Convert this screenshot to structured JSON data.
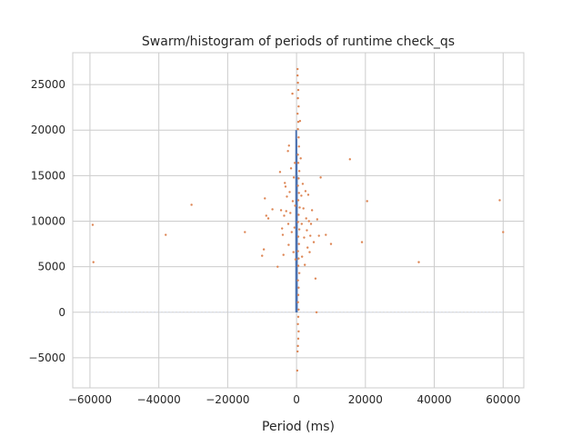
{
  "chart_data": {
    "type": "scatter",
    "title": "Swarm/histogram of periods of runtime check_qs",
    "xlabel": "Period (ms)",
    "ylabel": "",
    "xlim": [
      -65000,
      66000
    ],
    "ylim": [
      -8300,
      28500
    ],
    "grid": true,
    "x_ticks": [
      -60000,
      -40000,
      -20000,
      0,
      20000,
      40000,
      60000
    ],
    "x_tick_labels": [
      "−60000",
      "−40000",
      "−20000",
      "0",
      "20000",
      "40000",
      "60000"
    ],
    "y_ticks": [
      -5000,
      0,
      5000,
      10000,
      15000,
      20000,
      25000
    ],
    "y_tick_labels": [
      "−5000",
      "0",
      "5000",
      "10000",
      "15000",
      "20000",
      "25000"
    ],
    "colors": {
      "histogram": "#4c72b0",
      "swarm": "#dd8452",
      "baseline": "#d9e0ec"
    },
    "series": [
      {
        "kind": "histogram",
        "color": "#4c72b0",
        "bars": [
          {
            "x": -100,
            "y_from": 0,
            "y_to": 20000
          },
          {
            "x": -40,
            "y_from": 0,
            "y_to": 19000
          },
          {
            "x": 20,
            "y_from": 0,
            "y_to": 17500
          },
          {
            "x": 80,
            "y_from": 0,
            "y_to": 15000
          }
        ]
      },
      {
        "kind": "scatter",
        "color": "#dd8452",
        "points": [
          {
            "x": -59200,
            "y": 9600
          },
          {
            "x": -59000,
            "y": 5500
          },
          {
            "x": -38000,
            "y": 8500
          },
          {
            "x": -30500,
            "y": 11800
          },
          {
            "x": -15000,
            "y": 8800
          },
          {
            "x": -10000,
            "y": 6200
          },
          {
            "x": -9500,
            "y": 6900
          },
          {
            "x": -9200,
            "y": 12500
          },
          {
            "x": -8800,
            "y": 10600
          },
          {
            "x": -8200,
            "y": 10300
          },
          {
            "x": -7000,
            "y": 11300
          },
          {
            "x": -5500,
            "y": 5000
          },
          {
            "x": -4800,
            "y": 15400
          },
          {
            "x": -4500,
            "y": 11200
          },
          {
            "x": -4200,
            "y": 9200
          },
          {
            "x": -4000,
            "y": 8500
          },
          {
            "x": -3800,
            "y": 6300
          },
          {
            "x": -3600,
            "y": 10600
          },
          {
            "x": -3400,
            "y": 14200
          },
          {
            "x": -3200,
            "y": 13800
          },
          {
            "x": -3000,
            "y": 11100
          },
          {
            "x": -2800,
            "y": 12700
          },
          {
            "x": -2500,
            "y": 17700
          },
          {
            "x": -2400,
            "y": 9700
          },
          {
            "x": -2300,
            "y": 7400
          },
          {
            "x": -2200,
            "y": 18300
          },
          {
            "x": -2000,
            "y": 13200
          },
          {
            "x": -1800,
            "y": 10900
          },
          {
            "x": -1600,
            "y": 15800
          },
          {
            "x": -1400,
            "y": 8800
          },
          {
            "x": -1200,
            "y": 24000
          },
          {
            "x": -1100,
            "y": 12200
          },
          {
            "x": -900,
            "y": 6600
          },
          {
            "x": -800,
            "y": 14800
          },
          {
            "x": -600,
            "y": 9300
          },
          {
            "x": -500,
            "y": 16400
          },
          {
            "x": -400,
            "y": 11700
          },
          {
            "x": -300,
            "y": 5800
          },
          {
            "x": 300,
            "y": 26700
          },
          {
            "x": 300,
            "y": 26000
          },
          {
            "x": 400,
            "y": 25200
          },
          {
            "x": 500,
            "y": 24400
          },
          {
            "x": 400,
            "y": 23500
          },
          {
            "x": 600,
            "y": 22600
          },
          {
            "x": 300,
            "y": 21800
          },
          {
            "x": 500,
            "y": 20900
          },
          {
            "x": 400,
            "y": 20100
          },
          {
            "x": 600,
            "y": 19200
          },
          {
            "x": 700,
            "y": 18200
          },
          {
            "x": 400,
            "y": 17300
          },
          {
            "x": 500,
            "y": 16400
          },
          {
            "x": 800,
            "y": 15500
          },
          {
            "x": 600,
            "y": 14700
          },
          {
            "x": 400,
            "y": 13900
          },
          {
            "x": 700,
            "y": 13100
          },
          {
            "x": 500,
            "y": 12300
          },
          {
            "x": 900,
            "y": 11500
          },
          {
            "x": 600,
            "y": 10700
          },
          {
            "x": 400,
            "y": 9900
          },
          {
            "x": 800,
            "y": 9100
          },
          {
            "x": 500,
            "y": 8300
          },
          {
            "x": 700,
            "y": 7500
          },
          {
            "x": 400,
            "y": 6700
          },
          {
            "x": 600,
            "y": 5900
          },
          {
            "x": 500,
            "y": 5100
          },
          {
            "x": 800,
            "y": 4300
          },
          {
            "x": 400,
            "y": 3500
          },
          {
            "x": 600,
            "y": 2700
          },
          {
            "x": 500,
            "y": 1900
          },
          {
            "x": 400,
            "y": 1100
          },
          {
            "x": 600,
            "y": 300
          },
          {
            "x": 500,
            "y": -500
          },
          {
            "x": 400,
            "y": -1300
          },
          {
            "x": 600,
            "y": -2100
          },
          {
            "x": 500,
            "y": -2900
          },
          {
            "x": 400,
            "y": -3700
          },
          {
            "x": 300,
            "y": -4300
          },
          {
            "x": 200,
            "y": -6400
          },
          {
            "x": 1000,
            "y": 21000
          },
          {
            "x": 1200,
            "y": 16900
          },
          {
            "x": 1400,
            "y": 12800
          },
          {
            "x": 1500,
            "y": 9700
          },
          {
            "x": 1600,
            "y": 6100
          },
          {
            "x": 1800,
            "y": 14100
          },
          {
            "x": 2000,
            "y": 11400
          },
          {
            "x": 2200,
            "y": 8200
          },
          {
            "x": 2400,
            "y": 5200
          },
          {
            "x": 2600,
            "y": 13300
          },
          {
            "x": 2800,
            "y": 10300
          },
          {
            "x": 3000,
            "y": 9000
          },
          {
            "x": 3200,
            "y": 7100
          },
          {
            "x": 3400,
            "y": 12900
          },
          {
            "x": 3600,
            "y": 10000
          },
          {
            "x": 3800,
            "y": 6600
          },
          {
            "x": 4000,
            "y": 8400
          },
          {
            "x": 4200,
            "y": 9700
          },
          {
            "x": 4500,
            "y": 11200
          },
          {
            "x": 5000,
            "y": 7700
          },
          {
            "x": 5500,
            "y": 3700
          },
          {
            "x": 5800,
            "y": 0
          },
          {
            "x": 6000,
            "y": 10200
          },
          {
            "x": 6500,
            "y": 8400
          },
          {
            "x": 7000,
            "y": 14800
          },
          {
            "x": 8500,
            "y": 8500
          },
          {
            "x": 10000,
            "y": 7500
          },
          {
            "x": 15500,
            "y": 16800
          },
          {
            "x": 19000,
            "y": 7700
          },
          {
            "x": 20500,
            "y": 12200
          },
          {
            "x": 35500,
            "y": 5500
          },
          {
            "x": 59000,
            "y": 12300
          },
          {
            "x": 60000,
            "y": 8800
          }
        ]
      },
      {
        "kind": "baseline",
        "color": "#d9e0ec",
        "points": [
          {
            "x": -60000,
            "y": 0
          },
          {
            "x": 60000,
            "y": 0
          }
        ]
      }
    ]
  }
}
